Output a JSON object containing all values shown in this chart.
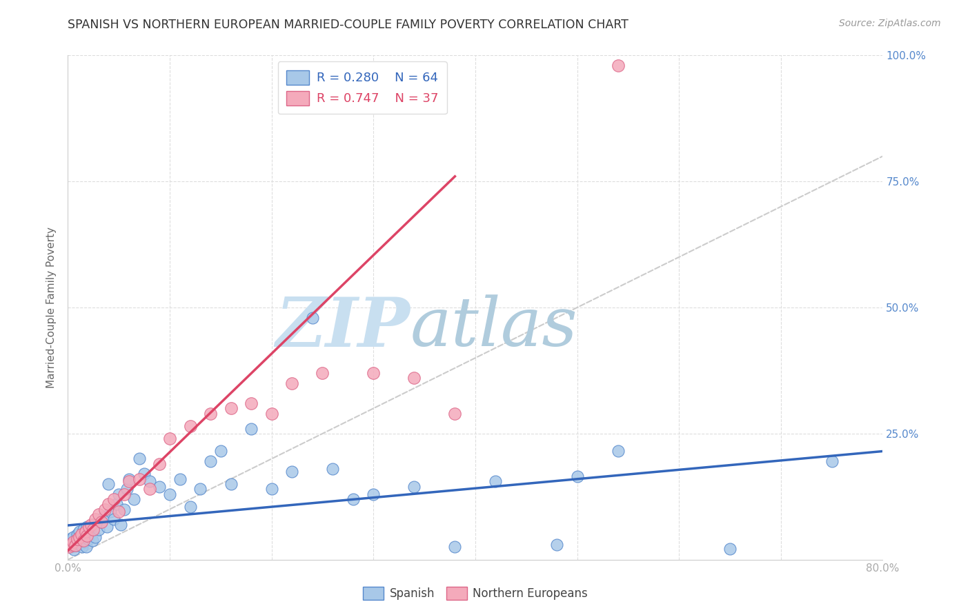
{
  "title": "SPANISH VS NORTHERN EUROPEAN MARRIED-COUPLE FAMILY POVERTY CORRELATION CHART",
  "source": "Source: ZipAtlas.com",
  "ylabel": "Married-Couple Family Poverty",
  "xlim": [
    0,
    0.8
  ],
  "ylim": [
    0,
    1.0
  ],
  "xticks": [
    0.0,
    0.1,
    0.2,
    0.3,
    0.4,
    0.5,
    0.6,
    0.7,
    0.8
  ],
  "xticklabels": [
    "0.0%",
    "",
    "",
    "",
    "",
    "",
    "",
    "",
    "80.0%"
  ],
  "yticks": [
    0.0,
    0.25,
    0.5,
    0.75,
    1.0
  ],
  "yticklabels_right": [
    "",
    "25.0%",
    "50.0%",
    "75.0%",
    "100.0%"
  ],
  "spanish_color": "#a8c8e8",
  "northern_color": "#f4aabb",
  "spanish_edge": "#5588cc",
  "northern_edge": "#dd6688",
  "trend_blue": "#3366bb",
  "trend_pink": "#dd4466",
  "ref_line_color": "#cccccc",
  "grid_color": "#dddddd",
  "watermark_zip_color": "#c8dff0",
  "watermark_atlas_color": "#b0ccdd",
  "legend_r_color": "#3366bb",
  "legend_n_color": "#3366bb",
  "legend_r_pink_color": "#dd4466",
  "legend_n_pink_color": "#dd4466",
  "legend_r_blue": "0.280",
  "legend_n_blue": "64",
  "legend_r_pink": "0.747",
  "legend_n_pink": "37",
  "spanish_x": [
    0.001,
    0.002,
    0.003,
    0.004,
    0.005,
    0.006,
    0.007,
    0.008,
    0.009,
    0.01,
    0.011,
    0.012,
    0.013,
    0.014,
    0.015,
    0.016,
    0.017,
    0.018,
    0.019,
    0.02,
    0.022,
    0.024,
    0.025,
    0.027,
    0.03,
    0.032,
    0.035,
    0.038,
    0.04,
    0.042,
    0.045,
    0.048,
    0.05,
    0.052,
    0.055,
    0.058,
    0.06,
    0.065,
    0.07,
    0.075,
    0.08,
    0.09,
    0.1,
    0.11,
    0.12,
    0.13,
    0.14,
    0.15,
    0.16,
    0.18,
    0.2,
    0.22,
    0.24,
    0.26,
    0.28,
    0.3,
    0.34,
    0.38,
    0.42,
    0.48,
    0.5,
    0.54,
    0.65,
    0.75
  ],
  "spanish_y": [
    0.035,
    0.04,
    0.025,
    0.03,
    0.045,
    0.02,
    0.035,
    0.028,
    0.05,
    0.038,
    0.055,
    0.03,
    0.042,
    0.025,
    0.06,
    0.035,
    0.048,
    0.025,
    0.065,
    0.04,
    0.055,
    0.038,
    0.07,
    0.045,
    0.06,
    0.075,
    0.085,
    0.065,
    0.15,
    0.095,
    0.08,
    0.11,
    0.13,
    0.07,
    0.1,
    0.14,
    0.16,
    0.12,
    0.2,
    0.17,
    0.155,
    0.145,
    0.13,
    0.16,
    0.105,
    0.14,
    0.195,
    0.215,
    0.15,
    0.26,
    0.14,
    0.175,
    0.48,
    0.18,
    0.12,
    0.13,
    0.145,
    0.025,
    0.155,
    0.03,
    0.165,
    0.215,
    0.022,
    0.195
  ],
  "northern_x": [
    0.001,
    0.003,
    0.005,
    0.007,
    0.009,
    0.011,
    0.013,
    0.015,
    0.017,
    0.019,
    0.021,
    0.023,
    0.025,
    0.027,
    0.03,
    0.033,
    0.036,
    0.04,
    0.045,
    0.05,
    0.055,
    0.06,
    0.07,
    0.08,
    0.09,
    0.1,
    0.12,
    0.14,
    0.16,
    0.18,
    0.2,
    0.22,
    0.25,
    0.3,
    0.34,
    0.38,
    0.54
  ],
  "northern_y": [
    0.025,
    0.03,
    0.035,
    0.028,
    0.04,
    0.045,
    0.05,
    0.038,
    0.055,
    0.048,
    0.065,
    0.07,
    0.06,
    0.08,
    0.09,
    0.075,
    0.1,
    0.11,
    0.12,
    0.095,
    0.13,
    0.155,
    0.16,
    0.14,
    0.19,
    0.24,
    0.265,
    0.29,
    0.3,
    0.31,
    0.29,
    0.35,
    0.37,
    0.37,
    0.36,
    0.29,
    0.98
  ],
  "blue_trend_x0": 0.0,
  "blue_trend_y0": 0.068,
  "blue_trend_x1": 0.8,
  "blue_trend_y1": 0.215,
  "pink_trend_x0": 0.0,
  "pink_trend_y0": 0.018,
  "pink_trend_x1": 0.38,
  "pink_trend_y1": 0.76
}
